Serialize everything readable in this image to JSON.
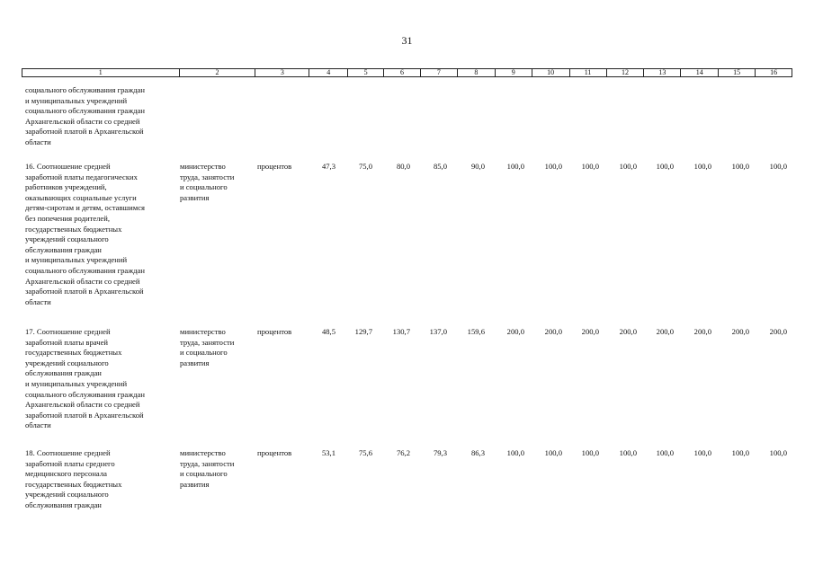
{
  "page_number": "31",
  "header_columns": [
    "1",
    "2",
    "3",
    "4",
    "5",
    "6",
    "7",
    "8",
    "9",
    "10",
    "11",
    "12",
    "13",
    "14",
    "15",
    "16"
  ],
  "rows": [
    {
      "name": "социального обслуживания граждан\nи муниципальных учреждений\nсоциального обслуживания граждан\nАрхангельской области со средней\nзаработной платой в Архангельской\nобласти",
      "ministry": "",
      "unit": "",
      "values": []
    },
    {
      "name": "16. Соотношение средней\nзаработной платы педагогических\nработников учреждений,\nоказывающих социальные услуги\nдетям-сиротам и детям, оставшимся\nбез попечения родителей,\nгосударственных бюджетных\nучреждений социального\nобслуживания граждан\nи муниципальных учреждений\nсоциального обслуживания граждан\nАрхангельской области со средней\nзаработной платой в Архангельской\nобласти",
      "ministry": "министерство\nтруда, занятости\nи социального\nразвития",
      "unit": "процентов",
      "values": [
        "47,3",
        "75,0",
        "80,0",
        "85,0",
        "90,0",
        "100,0",
        "100,0",
        "100,0",
        "100,0",
        "100,0",
        "100,0",
        "100,0",
        "100,0"
      ]
    },
    {
      "name": "17. Соотношение средней\nзаработной платы врачей\nгосударственных бюджетных\nучреждений социального\nобслуживания граждан\nи муниципальных учреждений\nсоциального обслуживания граждан\nАрхангельской области со средней\nзаработной платой в Архангельской\nобласти",
      "ministry": "министерство\nтруда, занятости\nи социального\nразвития",
      "unit": "процентов",
      "values": [
        "48,5",
        "129,7",
        "130,7",
        "137,0",
        "159,6",
        "200,0",
        "200,0",
        "200,0",
        "200,0",
        "200,0",
        "200,0",
        "200,0",
        "200,0"
      ]
    },
    {
      "name": "18. Соотношение средней\nзаработной платы среднего\nмедицинского персонала\nгосударственных бюджетных\nучреждений социального\nобслуживания граждан",
      "ministry": "министерство\nтруда, занятости\nи социального\nразвития",
      "unit": "процентов",
      "values": [
        "53,1",
        "75,6",
        "76,2",
        "79,3",
        "86,3",
        "100,0",
        "100,0",
        "100,0",
        "100,0",
        "100,0",
        "100,0",
        "100,0",
        "100,0"
      ]
    }
  ]
}
